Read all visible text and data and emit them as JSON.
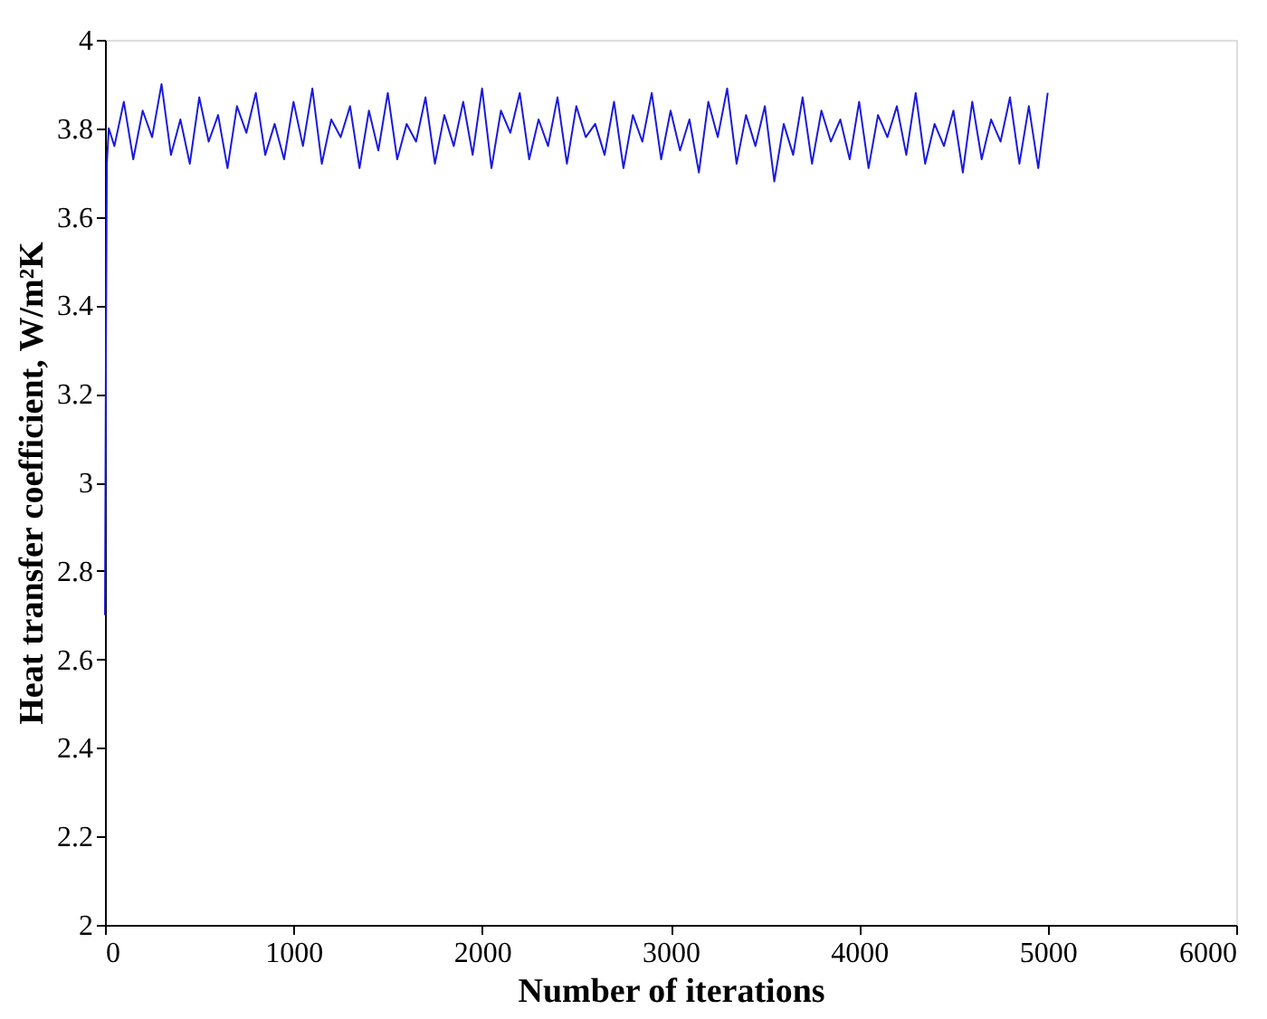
{
  "chart_data": {
    "type": "line",
    "xlabel": "Number of iterations",
    "ylabel": "Heat transfer coefficient, W/m²K",
    "xlim": [
      0,
      6000
    ],
    "xticks": [
      0,
      1000,
      2000,
      3000,
      4000,
      5000,
      6000
    ],
    "ylim": [
      2,
      4
    ],
    "yticks": [
      2,
      2.2,
      2.4,
      2.6,
      2.8,
      3,
      3.2,
      3.4,
      3.6,
      3.8,
      4
    ],
    "grid": false,
    "marker": "none",
    "line_style": "solid",
    "x": [
      0,
      5,
      10,
      20,
      50,
      100,
      150,
      200,
      250,
      300,
      350,
      400,
      450,
      500,
      550,
      600,
      650,
      700,
      750,
      800,
      850,
      900,
      950,
      1000,
      1050,
      1100,
      1150,
      1200,
      1250,
      1300,
      1350,
      1400,
      1450,
      1500,
      1550,
      1600,
      1650,
      1700,
      1750,
      1800,
      1850,
      1900,
      1950,
      2000,
      2050,
      2100,
      2150,
      2200,
      2250,
      2300,
      2350,
      2400,
      2450,
      2500,
      2550,
      2600,
      2650,
      2700,
      2750,
      2800,
      2850,
      2900,
      2950,
      3000,
      3050,
      3100,
      3150,
      3200,
      3250,
      3300,
      3350,
      3400,
      3450,
      3500,
      3550,
      3600,
      3650,
      3700,
      3750,
      3800,
      3850,
      3900,
      3950,
      4000,
      4050,
      4100,
      4150,
      4200,
      4250,
      4300,
      4350,
      4400,
      4450,
      4500,
      4550,
      4600,
      4650,
      4700,
      4750,
      4800,
      4850,
      4900,
      4950,
      5000
    ],
    "series": [
      {
        "color": "#1a1adc",
        "values": [
          2.7,
          3.3,
          3.72,
          3.8,
          3.76,
          3.86,
          3.73,
          3.84,
          3.78,
          3.9,
          3.74,
          3.82,
          3.72,
          3.87,
          3.77,
          3.83,
          3.71,
          3.85,
          3.79,
          3.88,
          3.74,
          3.81,
          3.73,
          3.86,
          3.76,
          3.89,
          3.72,
          3.82,
          3.78,
          3.85,
          3.71,
          3.84,
          3.75,
          3.88,
          3.73,
          3.81,
          3.77,
          3.87,
          3.72,
          3.83,
          3.76,
          3.86,
          3.74,
          3.89,
          3.71,
          3.84,
          3.79,
          3.88,
          3.73,
          3.82,
          3.76,
          3.87,
          3.72,
          3.85,
          3.78,
          3.81,
          3.74,
          3.86,
          3.71,
          3.83,
          3.77,
          3.88,
          3.73,
          3.84,
          3.75,
          3.82,
          3.7,
          3.86,
          3.78,
          3.89,
          3.72,
          3.83,
          3.76,
          3.85,
          3.68,
          3.81,
          3.74,
          3.87,
          3.72,
          3.84,
          3.77,
          3.82,
          3.73,
          3.86,
          3.71,
          3.83,
          3.78,
          3.85,
          3.74,
          3.88,
          3.72,
          3.81,
          3.76,
          3.84,
          3.7,
          3.86,
          3.73,
          3.82,
          3.77,
          3.87,
          3.72,
          3.85,
          3.71,
          3.88
        ]
      }
    ]
  }
}
